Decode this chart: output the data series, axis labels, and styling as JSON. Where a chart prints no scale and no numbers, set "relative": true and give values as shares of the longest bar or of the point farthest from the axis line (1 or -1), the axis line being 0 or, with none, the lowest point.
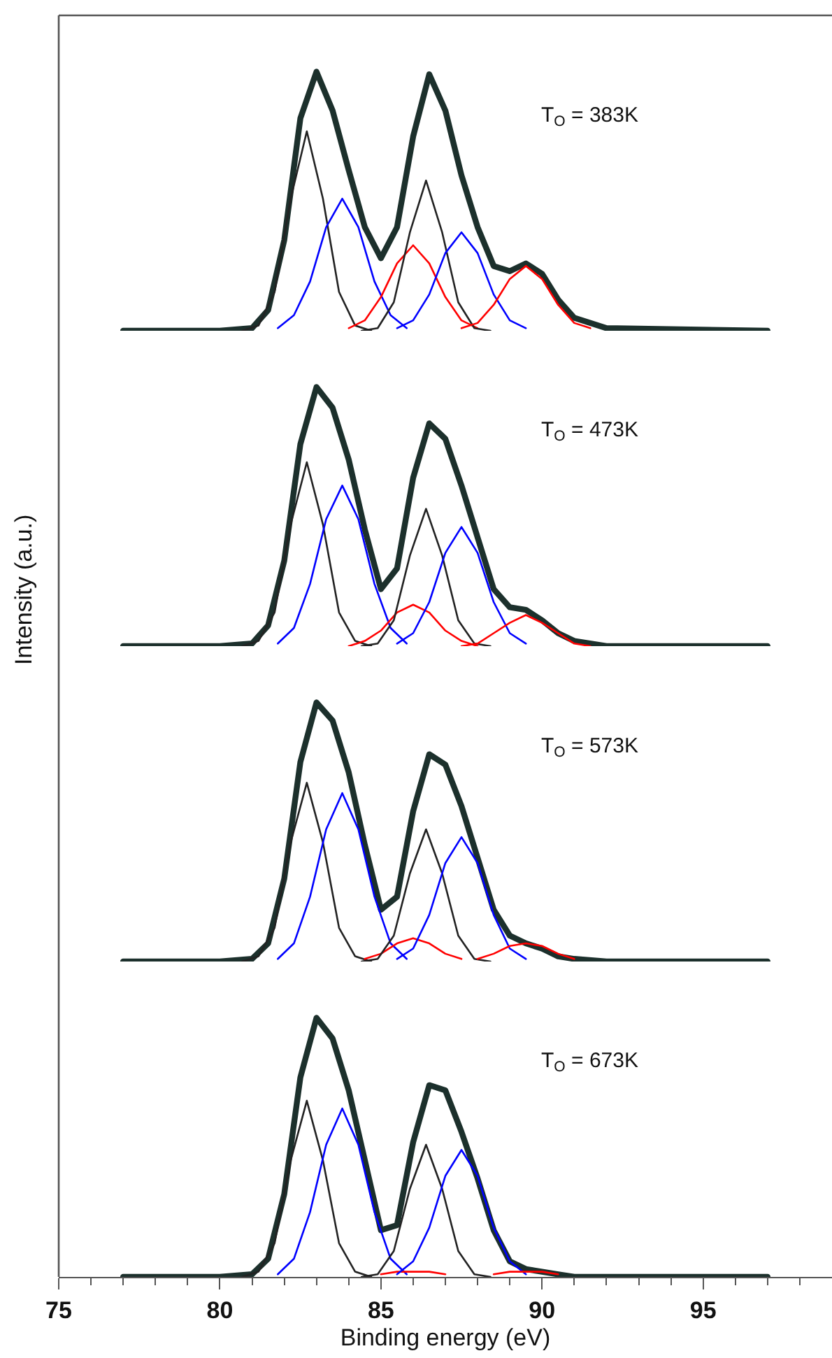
{
  "chart_data": [
    {
      "type": "line",
      "relative": true,
      "xlim": [
        75,
        99
      ],
      "tick_labels": false,
      "annotations": [
        "T$_{O}$ = 383K"
      ],
      "series": [
        {
          "color": "#1c302c",
          "x": [
            77,
            80,
            81,
            81.5,
            82,
            82.5,
            83,
            83.5,
            84,
            84.5,
            85,
            85.5,
            86,
            86.5,
            87,
            87.5,
            88,
            88.5,
            89,
            89.5,
            90,
            90.5,
            91,
            92,
            97
          ],
          "values": [
            0,
            0,
            0.01,
            0.08,
            0.35,
            0.82,
            1.0,
            0.85,
            0.62,
            0.4,
            0.28,
            0.4,
            0.75,
            0.99,
            0.85,
            0.6,
            0.4,
            0.25,
            0.23,
            0.26,
            0.22,
            0.12,
            0.05,
            0.01,
            0
          ]
        },
        {
          "color": "#222222",
          "x": [
            80.7,
            81.2,
            81.7,
            82.2,
            82.7,
            83.2,
            83.7,
            84.2,
            84.7
          ],
          "values": [
            0,
            0.02,
            0.15,
            0.51,
            0.77,
            0.51,
            0.15,
            0.02,
            0
          ]
        },
        {
          "color": "#0000ff",
          "x": [
            81.8,
            82.3,
            82.8,
            83.3,
            83.8,
            84.3,
            84.8,
            85.3,
            85.8
          ],
          "values": [
            0.01,
            0.06,
            0.19,
            0.4,
            0.51,
            0.4,
            0.19,
            0.06,
            0.01
          ]
        },
        {
          "color": "#ff0000",
          "x": [
            84,
            84.5,
            85,
            85.5,
            86,
            86.5,
            87,
            87.5,
            88
          ],
          "values": [
            0.01,
            0.04,
            0.13,
            0.26,
            0.33,
            0.26,
            0.13,
            0.04,
            0.01
          ]
        },
        {
          "color": "#222222",
          "x": [
            84.4,
            84.9,
            85.4,
            85.9,
            86.4,
            86.9,
            87.4,
            87.9,
            88.4
          ],
          "values": [
            0,
            0.01,
            0.11,
            0.38,
            0.58,
            0.38,
            0.11,
            0.01,
            0
          ]
        },
        {
          "color": "#0000ff",
          "x": [
            85.5,
            86,
            86.5,
            87,
            87.5,
            88,
            88.5,
            89,
            89.5
          ],
          "values": [
            0.01,
            0.04,
            0.14,
            0.3,
            0.38,
            0.3,
            0.14,
            0.04,
            0.01
          ]
        },
        {
          "color": "#ff0000",
          "x": [
            87.5,
            88,
            88.5,
            89,
            89.5,
            90,
            90.5,
            91,
            91.5
          ],
          "values": [
            0.01,
            0.03,
            0.1,
            0.2,
            0.25,
            0.2,
            0.1,
            0.03,
            0.01
          ]
        }
      ]
    },
    {
      "type": "line",
      "relative": true,
      "ylabel": "Intensity (a.u.)",
      "xlim": [
        75,
        99
      ],
      "tick_labels": false,
      "annotations": [
        "T$_{O}$ = 473K"
      ],
      "series": [
        {
          "color": "#1c302c",
          "x": [
            77,
            80,
            81,
            81.5,
            82,
            82.5,
            83,
            83.5,
            84,
            84.5,
            85,
            85.5,
            86,
            86.5,
            87,
            87.5,
            88,
            88.5,
            89,
            89.5,
            90,
            90.5,
            91,
            92,
            97
          ],
          "values": [
            0,
            0,
            0.01,
            0.08,
            0.33,
            0.78,
            1.0,
            0.92,
            0.72,
            0.45,
            0.22,
            0.3,
            0.65,
            0.86,
            0.8,
            0.62,
            0.42,
            0.22,
            0.15,
            0.14,
            0.1,
            0.05,
            0.02,
            0,
            0
          ]
        },
        {
          "color": "#222222",
          "x": [
            80.7,
            81.2,
            81.7,
            82.2,
            82.7,
            83.2,
            83.7,
            84.2,
            84.7
          ],
          "values": [
            0,
            0.02,
            0.13,
            0.47,
            0.71,
            0.47,
            0.13,
            0.02,
            0
          ]
        },
        {
          "color": "#0000ff",
          "x": [
            81.8,
            82.3,
            82.8,
            83.3,
            83.8,
            84.3,
            84.8,
            85.3,
            85.8
          ],
          "values": [
            0.01,
            0.07,
            0.24,
            0.49,
            0.62,
            0.49,
            0.24,
            0.07,
            0.01
          ]
        },
        {
          "color": "#ff0000",
          "x": [
            84,
            84.5,
            85,
            85.5,
            86,
            86.5,
            87,
            87.5,
            88
          ],
          "values": [
            0,
            0.02,
            0.06,
            0.13,
            0.16,
            0.13,
            0.06,
            0.02,
            0
          ]
        },
        {
          "color": "#222222",
          "x": [
            84.4,
            84.9,
            85.4,
            85.9,
            86.4,
            86.9,
            87.4,
            87.9,
            88.4
          ],
          "values": [
            0,
            0.01,
            0.1,
            0.35,
            0.53,
            0.35,
            0.1,
            0.01,
            0
          ]
        },
        {
          "color": "#0000ff",
          "x": [
            85.5,
            86,
            86.5,
            87,
            87.5,
            88,
            88.5,
            89,
            89.5
          ],
          "values": [
            0.01,
            0.05,
            0.17,
            0.36,
            0.46,
            0.36,
            0.17,
            0.05,
            0.01
          ]
        },
        {
          "color": "#ff0000",
          "x": [
            87.5,
            88,
            88.5,
            89,
            89.5,
            90,
            90.5,
            91,
            91.5
          ],
          "values": [
            0,
            0.01,
            0.05,
            0.09,
            0.12,
            0.09,
            0.05,
            0.01,
            0
          ]
        }
      ]
    },
    {
      "type": "line",
      "relative": true,
      "xlim": [
        75,
        99
      ],
      "tick_labels": false,
      "annotations": [
        "T$_{O}$ = 573K"
      ],
      "series": [
        {
          "color": "#1c302c",
          "x": [
            77,
            80,
            81,
            81.5,
            82,
            82.5,
            83,
            83.5,
            84,
            84.5,
            85,
            85.5,
            86,
            86.5,
            87,
            87.5,
            88,
            88.5,
            89,
            89.5,
            90,
            90.5,
            91,
            92,
            97
          ],
          "values": [
            0,
            0,
            0.01,
            0.07,
            0.32,
            0.77,
            1.0,
            0.93,
            0.73,
            0.45,
            0.2,
            0.25,
            0.58,
            0.8,
            0.76,
            0.6,
            0.4,
            0.2,
            0.1,
            0.07,
            0.05,
            0.02,
            0.01,
            0,
            0
          ]
        },
        {
          "color": "#222222",
          "x": [
            80.7,
            81.2,
            81.7,
            82.2,
            82.7,
            83.2,
            83.7,
            84.2,
            84.7
          ],
          "values": [
            0,
            0.02,
            0.13,
            0.46,
            0.69,
            0.46,
            0.13,
            0.02,
            0
          ]
        },
        {
          "color": "#0000ff",
          "x": [
            81.8,
            82.3,
            82.8,
            83.3,
            83.8,
            84.3,
            84.8,
            85.3,
            85.8
          ],
          "values": [
            0.01,
            0.07,
            0.25,
            0.51,
            0.65,
            0.51,
            0.25,
            0.07,
            0.01
          ]
        },
        {
          "color": "#ff0000",
          "x": [
            84.5,
            85,
            85.5,
            86,
            86.5,
            87,
            87.5
          ],
          "values": [
            0.01,
            0.03,
            0.07,
            0.09,
            0.07,
            0.03,
            0.01
          ]
        },
        {
          "color": "#222222",
          "x": [
            84.4,
            84.9,
            85.4,
            85.9,
            86.4,
            86.9,
            87.4,
            87.9,
            88.4
          ],
          "values": [
            0,
            0.01,
            0.1,
            0.34,
            0.51,
            0.34,
            0.1,
            0.01,
            0
          ]
        },
        {
          "color": "#0000ff",
          "x": [
            85.5,
            86,
            86.5,
            87,
            87.5,
            88,
            88.5,
            89,
            89.5
          ],
          "values": [
            0.01,
            0.05,
            0.18,
            0.38,
            0.48,
            0.38,
            0.18,
            0.05,
            0.01
          ]
        },
        {
          "color": "#ff0000",
          "x": [
            88,
            88.5,
            89,
            89.5,
            90,
            90.5,
            91
          ],
          "values": [
            0.01,
            0.03,
            0.06,
            0.07,
            0.06,
            0.03,
            0.01
          ]
        }
      ]
    },
    {
      "type": "line",
      "relative": true,
      "xlabel": "Binding energy (eV)",
      "xlim": [
        75,
        99
      ],
      "tick_labels": "x",
      "annotations": [
        "T$_{O}$ = 673K"
      ],
      "xticks": [
        75,
        {
          "value": 76,
          "label": null
        },
        {
          "value": 77,
          "label": null
        },
        {
          "value": 78,
          "label": null
        },
        {
          "value": 79,
          "label": null
        },
        80,
        {
          "value": 81,
          "label": null
        },
        {
          "value": 82,
          "label": null
        },
        {
          "value": 83,
          "label": null
        },
        {
          "value": 84,
          "label": null
        },
        85,
        {
          "value": 86,
          "label": null
        },
        {
          "value": 87,
          "label": null
        },
        {
          "value": 88,
          "label": null
        },
        {
          "value": 89,
          "label": null
        },
        90,
        {
          "value": 91,
          "label": null
        },
        {
          "value": 92,
          "label": null
        },
        {
          "value": 93,
          "label": null
        },
        {
          "value": 94,
          "label": null
        },
        95,
        {
          "value": 96,
          "label": null
        },
        {
          "value": 97,
          "label": null
        },
        {
          "value": 98,
          "label": null
        }
      ],
      "series": [
        {
          "color": "#1c302c",
          "x": [
            77,
            80,
            81,
            81.5,
            82,
            82.5,
            83,
            83.5,
            84,
            84.5,
            85,
            85.5,
            86,
            86.5,
            87,
            87.5,
            88,
            88.5,
            89,
            89.5,
            90,
            90.5,
            91,
            92,
            97
          ],
          "values": [
            0,
            0,
            0.01,
            0.07,
            0.32,
            0.77,
            1.0,
            0.92,
            0.72,
            0.45,
            0.18,
            0.2,
            0.52,
            0.74,
            0.72,
            0.56,
            0.38,
            0.18,
            0.06,
            0.03,
            0.02,
            0.01,
            0,
            0,
            0
          ]
        },
        {
          "color": "#222222",
          "x": [
            80.7,
            81.2,
            81.7,
            82.2,
            82.7,
            83.2,
            83.7,
            84.2,
            84.7
          ],
          "values": [
            0,
            0.02,
            0.13,
            0.45,
            0.68,
            0.45,
            0.13,
            0.02,
            0
          ]
        },
        {
          "color": "#0000ff",
          "x": [
            81.8,
            82.3,
            82.8,
            83.3,
            83.8,
            84.3,
            84.8,
            85.3,
            85.8
          ],
          "values": [
            0.01,
            0.07,
            0.25,
            0.51,
            0.65,
            0.51,
            0.25,
            0.07,
            0.01
          ]
        },
        {
          "color": "#ff0000",
          "x": [
            85,
            85.5,
            86,
            86.5,
            87
          ],
          "values": [
            0.01,
            0.02,
            0.02,
            0.02,
            0.01
          ]
        },
        {
          "color": "#222222",
          "x": [
            84.4,
            84.9,
            85.4,
            85.9,
            86.4,
            86.9,
            87.4,
            87.9,
            88.4
          ],
          "values": [
            0,
            0.01,
            0.1,
            0.34,
            0.51,
            0.34,
            0.1,
            0.01,
            0
          ]
        },
        {
          "color": "#0000ff",
          "x": [
            85.5,
            86,
            86.5,
            87,
            87.5,
            88,
            88.5,
            89,
            89.5
          ],
          "values": [
            0.01,
            0.06,
            0.19,
            0.39,
            0.49,
            0.39,
            0.19,
            0.06,
            0.01
          ]
        },
        {
          "color": "#ff0000",
          "x": [
            88.5,
            89,
            89.5,
            90,
            90.5
          ],
          "values": [
            0.01,
            0.02,
            0.02,
            0.02,
            0.01
          ]
        }
      ]
    }
  ]
}
